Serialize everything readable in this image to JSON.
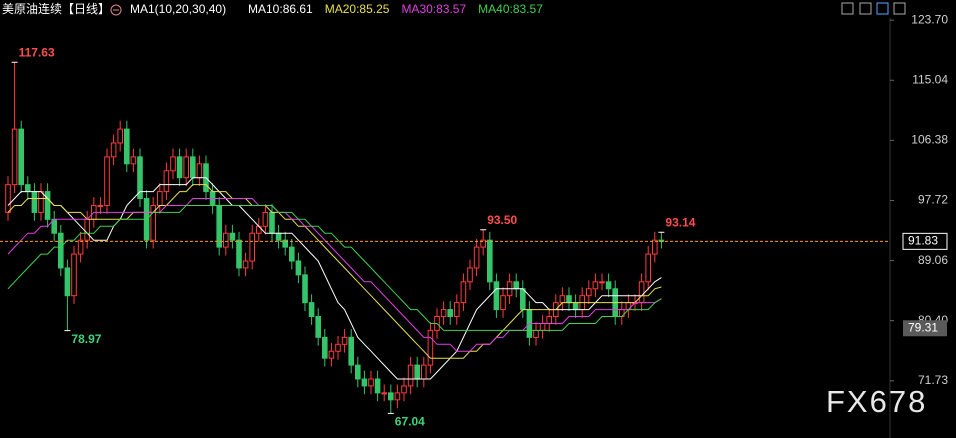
{
  "chart_data": {
    "type": "candlestick",
    "title": "美原油连续",
    "period": "【日线】",
    "indicator": "MA1(10,20,30,40)",
    "open": [
      96,
      100,
      108,
      100,
      99,
      96,
      99,
      95,
      93,
      88,
      84,
      90,
      92,
      95,
      97,
      97,
      104,
      106,
      108,
      103,
      104,
      98,
      92,
      97,
      99,
      102,
      104,
      101,
      104,
      101,
      103,
      99,
      97,
      91,
      93,
      92,
      88,
      89,
      93,
      94,
      96,
      93,
      92,
      91,
      89,
      87,
      83,
      81,
      78,
      75,
      76,
      77,
      78,
      74,
      72,
      71,
      72,
      70,
      70,
      69,
      70,
      71,
      74,
      72,
      74,
      79,
      81,
      82,
      81,
      83,
      86,
      88,
      91,
      92,
      86,
      82,
      84,
      86,
      85,
      82,
      78,
      79,
      80,
      81,
      83,
      84,
      83,
      82,
      84,
      85,
      86,
      86,
      85,
      81,
      82,
      83,
      83,
      86,
      90,
      92
    ],
    "high": [
      101.2,
      117.63,
      109.2,
      101.2,
      100.2,
      100.2,
      100.2,
      96.2,
      94.2,
      89.2,
      91.2,
      93.2,
      96.2,
      98.2,
      98.2,
      105.2,
      107.2,
      109.2,
      109.2,
      105.2,
      105.2,
      99.2,
      98.2,
      100.2,
      103.2,
      105.2,
      105.2,
      105.2,
      105.2,
      104.2,
      104.2,
      100.2,
      98.2,
      94.2,
      94.2,
      93.2,
      90.2,
      94.2,
      95.2,
      97.2,
      97.2,
      94.2,
      93.2,
      92.2,
      90.2,
      88.2,
      84.2,
      82.2,
      79.2,
      77.2,
      78.2,
      79.2,
      79.2,
      75.2,
      73.2,
      73.2,
      73.2,
      71.2,
      71.2,
      71.2,
      72.2,
      75.2,
      75.2,
      75.2,
      80.2,
      82.2,
      83.2,
      83.2,
      84.2,
      87.2,
      89.2,
      92.2,
      93.5,
      93.2,
      87.2,
      85.2,
      87.2,
      87.2,
      86.2,
      83.2,
      80.2,
      81.2,
      82.2,
      84.2,
      85.2,
      85.2,
      84.2,
      85.2,
      86.2,
      87.2,
      87.2,
      87.2,
      86.2,
      83.2,
      84.2,
      84.2,
      87.2,
      91.2,
      93.2,
      93.14
    ],
    "low": [
      94.8,
      98.8,
      98.8,
      97.8,
      94.8,
      94.8,
      93.8,
      91.8,
      86.8,
      78.97,
      82.8,
      88.8,
      90.8,
      93.8,
      95.8,
      95.8,
      102.8,
      104.8,
      101.8,
      101.8,
      96.8,
      90.8,
      90.8,
      95.8,
      97.8,
      100.8,
      99.8,
      99.8,
      99.8,
      99.8,
      97.8,
      95.8,
      89.8,
      89.8,
      90.8,
      86.8,
      86.8,
      87.8,
      91.8,
      92.8,
      91.8,
      90.8,
      89.8,
      87.8,
      85.8,
      81.8,
      79.8,
      76.8,
      73.8,
      73.8,
      74.8,
      75.8,
      72.8,
      70.8,
      69.8,
      69.8,
      68.8,
      68.8,
      67.04,
      67.8,
      68.8,
      69.8,
      70.8,
      70.8,
      72.8,
      77.8,
      79.8,
      79.8,
      79.8,
      81.8,
      84.8,
      86.8,
      89.8,
      84.8,
      80.8,
      80.8,
      82.8,
      83.8,
      80.8,
      76.8,
      76.8,
      77.8,
      78.8,
      79.8,
      81.8,
      81.8,
      80.8,
      80.8,
      82.8,
      83.8,
      84.8,
      83.8,
      79.8,
      79.8,
      80.8,
      81.8,
      81.8,
      84.8,
      88.8,
      90.8
    ],
    "close": [
      100,
      108,
      100,
      99,
      96,
      99,
      95,
      93,
      88,
      84,
      90,
      92,
      95,
      97,
      97,
      104,
      106,
      108,
      103,
      104,
      98,
      92,
      97,
      99,
      102,
      104,
      101,
      104,
      101,
      103,
      99,
      97,
      91,
      93,
      92,
      88,
      89,
      93,
      94,
      96,
      93,
      92,
      91,
      89,
      87,
      83,
      81,
      78,
      75,
      76,
      77,
      78,
      74,
      72,
      71,
      72,
      70,
      70,
      69,
      70,
      71,
      74,
      72,
      74,
      79,
      81,
      82,
      81,
      83,
      86,
      88,
      91,
      92,
      86,
      82,
      84,
      86,
      85,
      82,
      78,
      79,
      80,
      81,
      83,
      84,
      83,
      82,
      84,
      85,
      86,
      86,
      85,
      81,
      82,
      83,
      83,
      86,
      90,
      92,
      91.83
    ],
    "up_color": "#ff3b3b",
    "down_color": "#35c46a",
    "series": [
      {
        "name": "MA10:",
        "color": "#ffffff",
        "values": [
          97,
          98,
          99,
          99,
          99,
          99,
          98,
          97,
          97,
          96,
          95,
          94,
          93,
          92,
          92,
          92,
          94,
          95,
          97,
          98,
          99,
          99,
          99,
          100,
          100,
          100,
          100,
          100,
          101,
          101,
          101,
          100,
          99,
          98,
          97,
          97,
          96,
          95,
          94,
          93,
          93,
          93,
          93,
          93,
          92,
          91,
          90,
          89,
          87,
          85,
          83,
          82,
          80,
          78,
          77,
          76,
          75,
          74,
          73,
          72,
          72,
          72,
          72,
          72,
          72,
          73,
          74,
          75,
          76,
          78,
          80,
          82,
          83,
          84,
          85,
          85,
          85,
          85,
          85,
          84,
          83,
          83,
          82,
          82,
          82,
          82,
          82,
          82,
          82,
          83,
          84,
          84,
          84,
          84,
          84,
          84,
          84,
          85,
          86,
          86.61
        ]
      },
      {
        "name": "MA20:",
        "color": "#e8e04a",
        "values": [
          96,
          97,
          97,
          98,
          98,
          98,
          98,
          97,
          97,
          96,
          96,
          96,
          95,
          95,
          95,
          95,
          95,
          95,
          95,
          96,
          96,
          96,
          96,
          97,
          97,
          98,
          99,
          99,
          100,
          100,
          100,
          99,
          99,
          99,
          98,
          98,
          98,
          97,
          97,
          97,
          96,
          96,
          95,
          95,
          94,
          94,
          93,
          92,
          91,
          90,
          89,
          88,
          87,
          86,
          85,
          84,
          83,
          82,
          81,
          80,
          79,
          78,
          77,
          76,
          75,
          75,
          75,
          75,
          75,
          75,
          76,
          76,
          77,
          77,
          78,
          79,
          80,
          81,
          82,
          82,
          82,
          82,
          82,
          82,
          83,
          83,
          83,
          83,
          83,
          83,
          83,
          83,
          83,
          83,
          83,
          83,
          84,
          84,
          85,
          85.25
        ]
      },
      {
        "name": "MA30:",
        "color": "#e040e0",
        "values": [
          90,
          91,
          92,
          93,
          93,
          94,
          94,
          95,
          95,
          95,
          95,
          95,
          95,
          96,
          96,
          96,
          96,
          96,
          96,
          96,
          96,
          96,
          96,
          96,
          97,
          97,
          97,
          97,
          98,
          98,
          98,
          98,
          98,
          98,
          98,
          98,
          98,
          98,
          97,
          97,
          97,
          96,
          96,
          95,
          95,
          94,
          94,
          93,
          92,
          91,
          90,
          89,
          88,
          87,
          86,
          86,
          85,
          84,
          83,
          82,
          81,
          80,
          79,
          78,
          78,
          77,
          77,
          77,
          76,
          76,
          76,
          77,
          77,
          77,
          78,
          78,
          79,
          79,
          79,
          80,
          80,
          80,
          80,
          80,
          80,
          81,
          81,
          81,
          81,
          82,
          82,
          82,
          82,
          82,
          82,
          83,
          83,
          83,
          83,
          83.57
        ]
      },
      {
        "name": "MA40:",
        "color": "#3fd24a",
        "values": [
          85,
          86,
          87,
          88,
          89,
          90,
          90,
          91,
          91,
          92,
          92,
          93,
          93,
          93,
          94,
          94,
          94,
          95,
          95,
          95,
          95,
          95,
          96,
          96,
          96,
          96,
          96,
          97,
          97,
          97,
          97,
          97,
          97,
          97,
          97,
          97,
          97,
          97,
          97,
          97,
          97,
          96,
          96,
          96,
          95,
          95,
          94,
          94,
          93,
          93,
          92,
          91,
          91,
          90,
          89,
          88,
          87,
          86,
          85,
          84,
          83,
          82,
          82,
          81,
          80,
          80,
          79,
          79,
          79,
          79,
          79,
          79,
          79,
          79,
          79,
          79,
          79,
          79,
          79,
          79,
          79,
          79,
          79,
          79,
          79,
          80,
          80,
          80,
          80,
          80,
          81,
          81,
          81,
          81,
          82,
          82,
          82,
          82,
          83,
          83.57
        ]
      }
    ],
    "ylim": [
      63.5,
      126.6
    ],
    "yticks": [
      {
        "value": 123.7,
        "label": "123.70"
      },
      115.04,
      106.38,
      97.72,
      89.06,
      {
        "value": 80.4,
        "label": "80.40"
      },
      71.73
    ],
    "price_lines": [
      {
        "value": 91.83,
        "color": "#ff9a1a"
      },
      {
        "value": 79.31,
        "color": "#5a5a5a"
      }
    ],
    "extreme_labels": [
      117.63,
      78.97,
      {
        "value": 93.5,
        "label": "93.50"
      },
      93.14,
      67.04
    ]
  },
  "watermark": "FX678"
}
